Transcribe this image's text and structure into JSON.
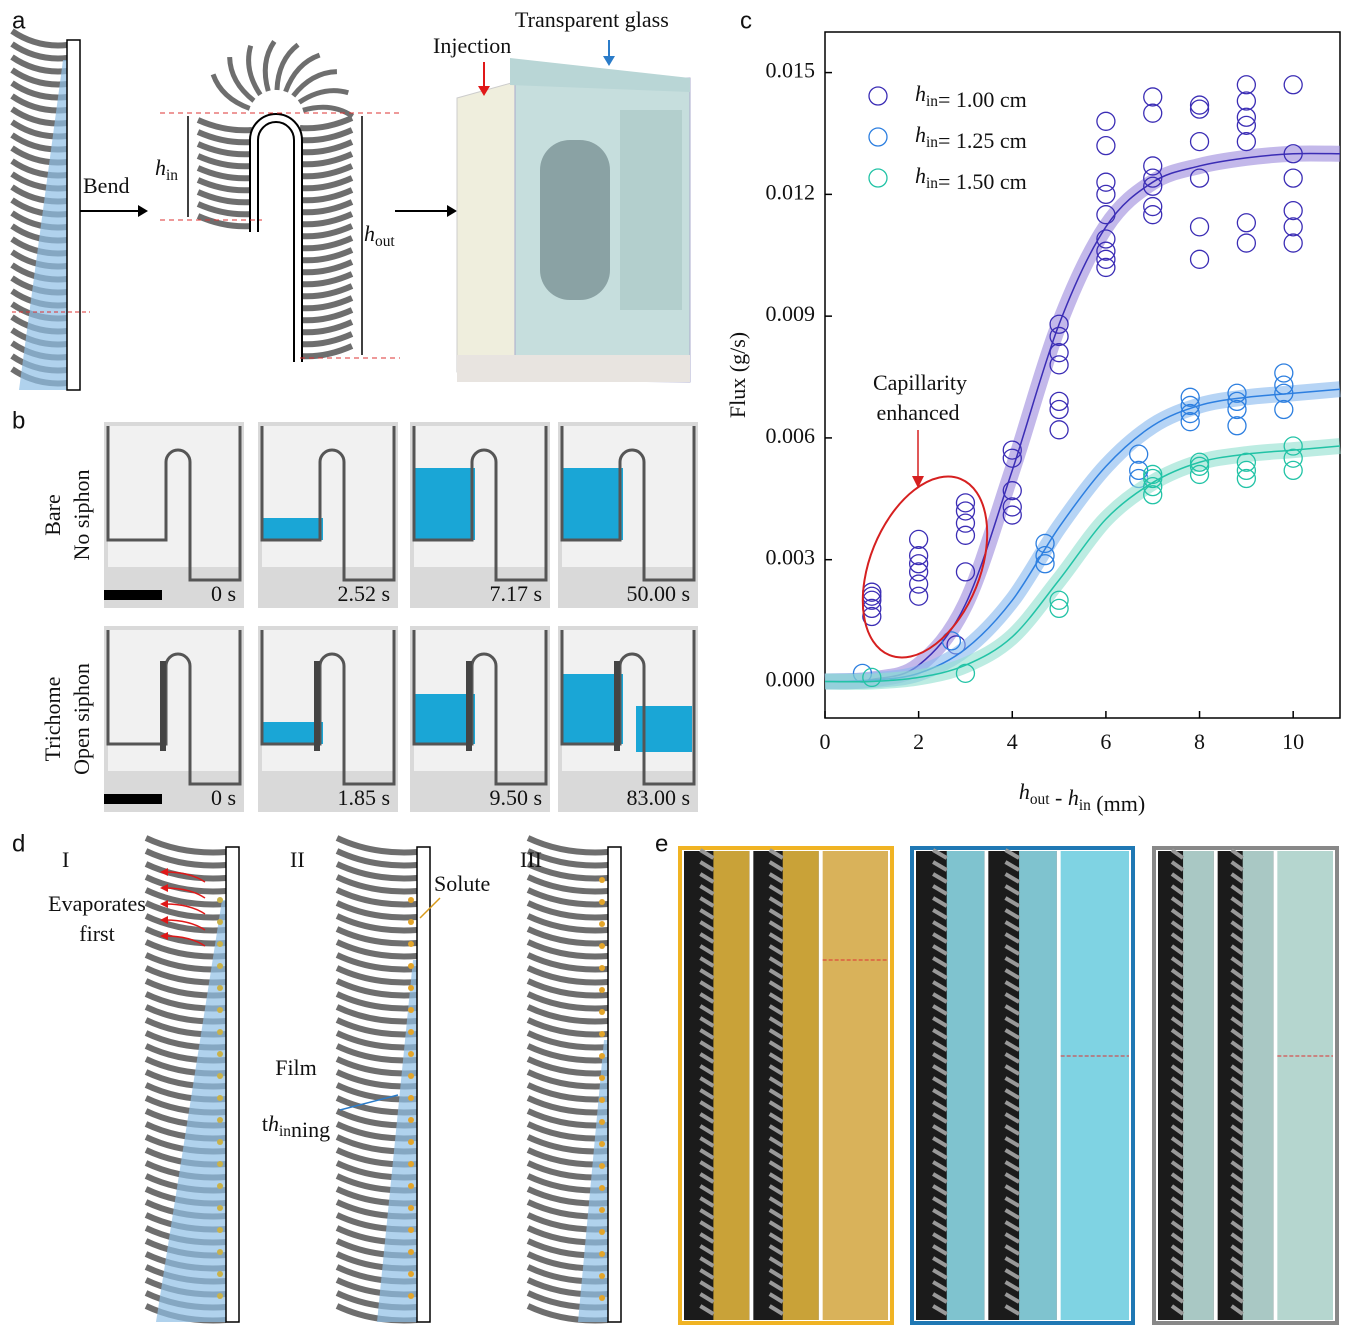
{
  "panel_labels": [
    "a",
    "b",
    "c",
    "d",
    "e"
  ],
  "panel_a": {
    "bend": "Bend",
    "h_in": "hin",
    "h_out": "hout",
    "injection": "Injection",
    "glass": "Transparent glass"
  },
  "panel_b": {
    "rows": [
      {
        "labels": [
          "Bare",
          "No siphon"
        ],
        "times": [
          "0 s",
          "2.52 s",
          "7.17 s",
          "50.00 s"
        ]
      },
      {
        "labels": [
          "Trichome",
          "Open siphon"
        ],
        "times": [
          "0 s",
          "1.85 s",
          "9.50 s",
          "83.00 s"
        ]
      }
    ]
  },
  "panel_d": {
    "stages": [
      "I",
      "II",
      "III"
    ],
    "evaporates": [
      "Evaporates",
      "first"
    ],
    "solute": "Solute",
    "film": [
      "Film",
      "thinning"
    ]
  },
  "chart_data": {
    "type": "scatter",
    "x_label": "hout - hin (mm)",
    "y_label": "Flux (g/s)",
    "annotation": [
      "Capillarity",
      "enhanced"
    ],
    "xlim": [
      0,
      11
    ],
    "xticks": [
      0,
      2,
      4,
      6,
      8,
      10
    ],
    "ylim": [
      -0.0009,
      0.016
    ],
    "yticks": [
      {
        "value": 0,
        "label": "0.000"
      },
      0.003,
      0.006,
      0.009,
      0.012,
      0.015
    ],
    "series": [
      {
        "name": "hin= 1.00 cm",
        "color": "#3b2db5",
        "band_color": "#9b88dc",
        "x": [
          1,
          1,
          1,
          1,
          1,
          2,
          2,
          2,
          2,
          2,
          2,
          2.8,
          3,
          3,
          3,
          3,
          3,
          4,
          4,
          4,
          4,
          4,
          5,
          5,
          5,
          5,
          5,
          5,
          5,
          6,
          6,
          6,
          6,
          6,
          6,
          6,
          6,
          6,
          7,
          7,
          7,
          7,
          7,
          7,
          7,
          8,
          8,
          8,
          8,
          8,
          8,
          9,
          9,
          9,
          9,
          9,
          9,
          9,
          10,
          10,
          10,
          10,
          10,
          10
        ],
        "values": [
          0.0016,
          0.0018,
          0.002,
          0.0022,
          0.0021,
          0.0021,
          0.0024,
          0.0027,
          0.0029,
          0.0031,
          0.0035,
          0.0009,
          0.0027,
          0.0036,
          0.0039,
          0.0042,
          0.0044,
          0.0041,
          0.0043,
          0.0047,
          0.0055,
          0.0057,
          0.0062,
          0.0067,
          0.0069,
          0.0078,
          0.0081,
          0.0085,
          0.0088,
          0.0102,
          0.0104,
          0.0106,
          0.0109,
          0.0115,
          0.012,
          0.0123,
          0.0132,
          0.0138,
          0.0115,
          0.0117,
          0.0122,
          0.0124,
          0.0127,
          0.014,
          0.0144,
          0.0104,
          0.0112,
          0.0124,
          0.0133,
          0.0141,
          0.0142,
          0.0108,
          0.0113,
          0.0133,
          0.0137,
          0.0139,
          0.0143,
          0.0147,
          0.0108,
          0.0112,
          0.0116,
          0.0124,
          0.013,
          0.0147
        ],
        "fit": {
          "x": [
            0,
            1,
            2,
            3,
            4,
            5,
            6,
            7,
            8,
            9,
            10,
            11
          ],
          "values": [
            0,
            5e-05,
            0.0004,
            0.0019,
            0.0052,
            0.0088,
            0.0112,
            0.0123,
            0.0127,
            0.0129,
            0.013,
            0.013
          ]
        }
      },
      {
        "name": "hin= 1.25 cm",
        "color": "#2d7fe0",
        "band_color": "#86b8ee",
        "x": [
          0.8,
          2.7,
          4.7,
          4.7,
          4.7,
          6.7,
          6.7,
          6.7,
          7.8,
          7.8,
          7.8,
          7.8,
          8.8,
          8.8,
          8.8,
          8.8,
          9.8,
          9.8,
          9.8,
          9.8
        ],
        "values": [
          0.0002,
          0.001,
          0.0029,
          0.0031,
          0.0034,
          0.005,
          0.0052,
          0.0056,
          0.0064,
          0.0066,
          0.0068,
          0.007,
          0.0063,
          0.0067,
          0.0069,
          0.0071,
          0.0067,
          0.0071,
          0.0073,
          0.0076
        ],
        "fit": {
          "x": [
            0,
            1,
            2,
            3,
            4,
            5,
            6,
            7,
            8,
            9,
            10,
            11
          ],
          "values": [
            0,
            3e-05,
            0.0002,
            0.0008,
            0.002,
            0.0038,
            0.0053,
            0.0063,
            0.0068,
            0.007,
            0.0071,
            0.0072
          ]
        }
      },
      {
        "name": "hin= 1.50 cm",
        "color": "#22c3a6",
        "band_color": "#8fe0cf",
        "x": [
          1,
          3,
          5,
          5,
          7,
          7,
          7,
          7,
          8,
          8,
          8,
          9,
          9,
          9,
          10,
          10,
          10
        ],
        "values": [
          0.0001,
          0.0002,
          0.0018,
          0.002,
          0.0046,
          0.0048,
          0.005,
          0.0051,
          0.0051,
          0.0053,
          0.0054,
          0.005,
          0.0052,
          0.0054,
          0.0052,
          0.0055,
          0.0058
        ],
        "fit": {
          "x": [
            0,
            1,
            2,
            3,
            4,
            5,
            6,
            7,
            8,
            9,
            10,
            11
          ],
          "values": [
            0,
            0,
            0.0001,
            0.0004,
            0.0011,
            0.0025,
            0.004,
            0.0049,
            0.0054,
            0.0056,
            0.0057,
            0.0058
          ]
        }
      }
    ]
  }
}
